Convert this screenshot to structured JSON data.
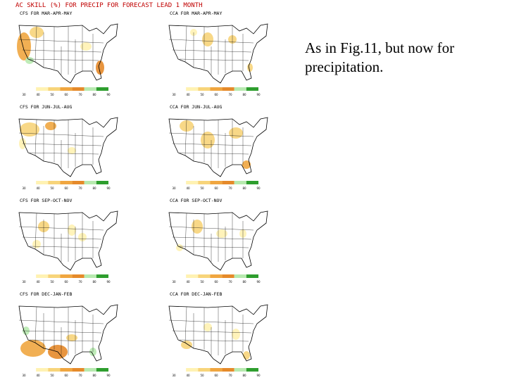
{
  "figure": {
    "title": "AC SKILL (%) FOR PRECIP FOR FORECAST LEAD 1 MONTH",
    "panels": [
      {
        "title": "CFS FOR MAR-APR-MAY"
      },
      {
        "title": "CCA FOR MAR-APR-MAY"
      },
      {
        "title": "CFS FOR JUN-JUL-AUG"
      },
      {
        "title": "CCA FOR JUN-JUL-AUG"
      },
      {
        "title": "CFS FOR SEP-OCT-NOV"
      },
      {
        "title": "CCA FOR SEP-OCT-NOV"
      },
      {
        "title": "CFS FOR DEC-JAN-FEB"
      },
      {
        "title": "CCA FOR DEC-JAN-FEB"
      }
    ],
    "colorbar_labels": [
      30,
      40,
      50,
      60,
      70,
      80,
      90
    ]
  },
  "caption": "As in Fig.11, but now for precipitation."
}
